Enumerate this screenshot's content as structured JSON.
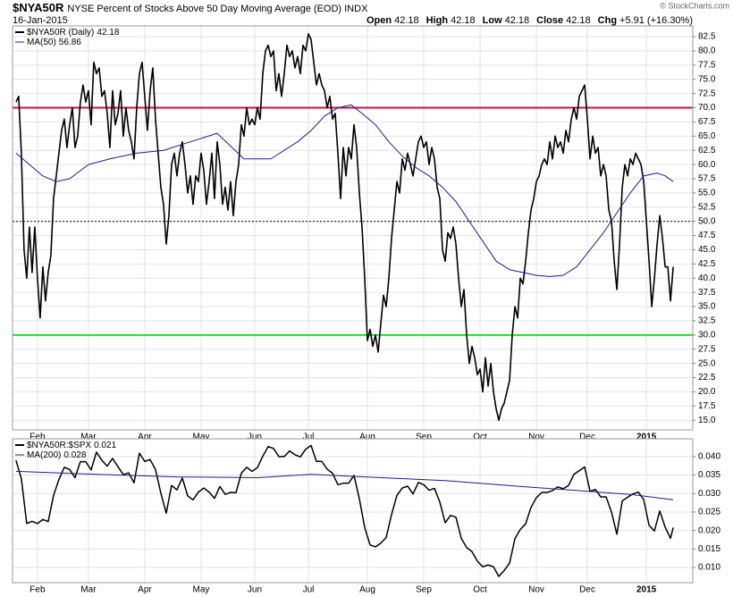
{
  "credit": "© StockCharts.com",
  "chart_data": [
    {
      "type": "line",
      "title": "$NYA50R",
      "subtitle": "NYSE Percent of Stocks Above 50 Day Moving Average (EOD) INDX",
      "date": "16-Jan-2015",
      "quote": [
        {
          "label": "Open",
          "value": "42.18"
        },
        {
          "label": "High",
          "value": "42.18"
        },
        {
          "label": "Low",
          "value": "42.18"
        },
        {
          "label": "Close",
          "value": "42.18"
        },
        {
          "label": "Chg",
          "value": "+5.91 (+16.30%)"
        }
      ],
      "xlim": [
        -1.3,
        252.3
      ],
      "xticks": [
        {
          "value": 8,
          "label": "Feb"
        },
        {
          "value": 27,
          "label": "Mar"
        },
        {
          "value": 48,
          "label": "Apr"
        },
        {
          "value": 69,
          "label": "May"
        },
        {
          "value": 89,
          "label": "Jun"
        },
        {
          "value": 109,
          "label": "Jul"
        },
        {
          "value": 131,
          "label": "Aug"
        },
        {
          "value": 152,
          "label": "Sep"
        },
        {
          "value": 173,
          "label": "Oct"
        },
        {
          "value": 194,
          "label": "Nov"
        },
        {
          "value": 213,
          "label": "Dec"
        },
        {
          "value": 235,
          "label": "2015"
        }
      ],
      "ylim": [
        13.3,
        84.4
      ],
      "yticks": [
        {
          "value": 15,
          "label": "15.0"
        },
        17.5,
        {
          "value": 20,
          "label": "20.0"
        },
        22.5,
        {
          "value": 25,
          "label": "25.0"
        },
        27.5,
        {
          "value": 30,
          "label": "30.0"
        },
        32.5,
        {
          "value": 35,
          "label": "35.0"
        },
        37.5,
        {
          "value": 40,
          "label": "40.0"
        },
        42.5,
        {
          "value": 45,
          "label": "45.0"
        },
        47.5,
        {
          "value": 50,
          "label": "50.0"
        },
        52.5,
        {
          "value": 55,
          "label": "55.0"
        },
        57.5,
        {
          "value": 60,
          "label": "60.0"
        },
        62.5,
        {
          "value": 65,
          "label": "65.0"
        },
        67.5,
        {
          "value": 70,
          "label": "70.0"
        },
        72.5,
        {
          "value": 75,
          "label": "75.0"
        },
        77.5,
        {
          "value": 80,
          "label": "80.0"
        },
        82.5
      ],
      "grid": true,
      "hlines": [
        {
          "value": 70,
          "color": "#c8143c",
          "style": "solid"
        },
        {
          "value": 50,
          "color": "#000000",
          "style": "dotted"
        },
        {
          "value": 30,
          "color": "#22e022",
          "style": "solid"
        }
      ],
      "series": [
        {
          "name": "$NYA50R (Daily)",
          "legend_value": "42.18",
          "color": "#000000",
          "width": 1.6,
          "x": [
            0,
            1,
            2,
            3,
            4,
            5,
            6,
            7,
            8,
            9,
            10,
            11,
            12,
            13,
            14,
            15,
            16,
            17,
            18,
            19,
            20,
            21,
            22,
            23,
            24,
            25,
            26,
            27,
            28,
            29,
            30,
            31,
            32,
            33,
            34,
            35,
            36,
            37,
            38,
            39,
            40,
            41,
            42,
            43,
            44,
            45,
            46,
            47,
            48,
            49,
            50,
            51,
            52,
            53,
            54,
            55,
            56,
            57,
            58,
            59,
            60,
            61,
            62,
            63,
            64,
            65,
            66,
            67,
            68,
            69,
            70,
            71,
            72,
            73,
            74,
            75,
            76,
            77,
            78,
            79,
            80,
            81,
            82,
            83,
            84,
            85,
            86,
            87,
            88,
            89,
            90,
            91,
            92,
            93,
            94,
            95,
            96,
            97,
            98,
            99,
            100,
            101,
            102,
            103,
            104,
            105,
            106,
            107,
            108,
            109,
            110,
            111,
            112,
            113,
            114,
            115,
            116,
            117,
            118,
            119,
            120,
            121,
            122,
            123,
            124,
            125,
            126,
            127,
            128,
            129,
            130,
            131,
            132,
            133,
            134,
            135,
            136,
            137,
            138,
            139,
            140,
            141,
            142,
            143,
            144,
            145,
            146,
            147,
            148,
            149,
            150,
            151,
            152,
            153,
            154,
            155,
            156,
            157,
            158,
            159,
            160,
            161,
            162,
            163,
            164,
            165,
            166,
            167,
            168,
            169,
            170,
            171,
            172,
            173,
            174,
            175,
            176,
            177,
            178,
            179,
            180,
            181,
            182,
            183,
            184,
            185,
            186,
            187,
            188,
            189,
            190,
            191,
            192,
            193,
            194,
            195,
            196,
            197,
            198,
            199,
            200,
            201,
            202,
            203,
            204,
            205,
            206,
            207,
            208,
            209,
            210,
            211,
            212,
            213,
            214,
            215,
            216,
            217,
            218,
            219,
            220,
            221,
            222,
            223,
            224,
            225,
            226,
            227,
            228,
            229,
            230,
            231,
            232,
            233,
            234,
            235,
            236,
            237,
            238,
            239,
            240,
            241,
            242,
            243,
            244,
            245
          ],
          "values": [
            71,
            72,
            62,
            45,
            40,
            49,
            41,
            49,
            40,
            33,
            42,
            36,
            41,
            44,
            54,
            58,
            62,
            66,
            68,
            63,
            67,
            70,
            63,
            65,
            71,
            74,
            71,
            73,
            67,
            78,
            76,
            77,
            72,
            73,
            69,
            63,
            73,
            67,
            69,
            73,
            65,
            70,
            66,
            64,
            61,
            70,
            76,
            78,
            72,
            66,
            73,
            77,
            68,
            62,
            56,
            53,
            46,
            51,
            60,
            62,
            58,
            62,
            64,
            60,
            55,
            58,
            53,
            58,
            57,
            62,
            59,
            53,
            57,
            62,
            54,
            64,
            60,
            53,
            56,
            52,
            57,
            51,
            57,
            60,
            67,
            65,
            70,
            67,
            68,
            67,
            70,
            68,
            76,
            80,
            81,
            79,
            80,
            73,
            76,
            72,
            76,
            81,
            79,
            80,
            77,
            79,
            76,
            81,
            80,
            83,
            82,
            78,
            74,
            76,
            74,
            73,
            70,
            72,
            68,
            69,
            62,
            54,
            63,
            58,
            63,
            61,
            67,
            63,
            55,
            49,
            40,
            29,
            31,
            28,
            30,
            27,
            32,
            37,
            35,
            40,
            47,
            52,
            57,
            55,
            61,
            59,
            62,
            60,
            58,
            61,
            64,
            65,
            63,
            64,
            60,
            63,
            61,
            56,
            54,
            45,
            43,
            48,
            47,
            49,
            46,
            40,
            35,
            38,
            30,
            25,
            28,
            26,
            23,
            24,
            20,
            26,
            21,
            25,
            20,
            17,
            15,
            17,
            18,
            20,
            22,
            30,
            35,
            33,
            40,
            39,
            43,
            48,
            52,
            54,
            57,
            58,
            60,
            61,
            60,
            64,
            61,
            65,
            63,
            64,
            62,
            66,
            64,
            68,
            70,
            68,
            72,
            73,
            74,
            68,
            61,
            65,
            62,
            63,
            58,
            60,
            58,
            52,
            50,
            43,
            38,
            46,
            56,
            60,
            58,
            61,
            60,
            62,
            61,
            60,
            57,
            50,
            43,
            35,
            40,
            46,
            51,
            47,
            42,
            42,
            36,
            42
          ]
        },
        {
          "name": "MA(50)",
          "legend_value": "56.86",
          "color": "#1c1c8c",
          "width": 1,
          "x": [
            0,
            5,
            10,
            15,
            20,
            27,
            35,
            45,
            55,
            65,
            75,
            85,
            95,
            105,
            110,
            115,
            120,
            125,
            129,
            134,
            139,
            144,
            149,
            154,
            159,
            164,
            169,
            174,
            179,
            184,
            189,
            194,
            199,
            204,
            209,
            214,
            219,
            224,
            229,
            234,
            239,
            242,
            245
          ],
          "values": [
            62,
            60,
            58,
            57,
            57.5,
            60,
            61,
            62,
            62.5,
            64,
            65.5,
            61,
            61,
            64,
            66,
            68.5,
            70,
            70.5,
            69,
            67,
            64,
            61.5,
            59.5,
            58,
            56,
            53.5,
            50,
            46.5,
            43,
            41.5,
            41,
            40.5,
            40.3,
            40.5,
            42,
            45,
            48,
            51.5,
            55,
            58,
            58.5,
            58,
            57
          ]
        }
      ]
    },
    {
      "type": "line",
      "xlim": [
        -1.3,
        252.3
      ],
      "xticks": [
        {
          "value": 8,
          "label": "Feb"
        },
        {
          "value": 27,
          "label": "Mar"
        },
        {
          "value": 48,
          "label": "Apr"
        },
        {
          "value": 69,
          "label": "May"
        },
        {
          "value": 89,
          "label": "Jun"
        },
        {
          "value": 109,
          "label": "Jul"
        },
        {
          "value": 131,
          "label": "Aug"
        },
        {
          "value": 152,
          "label": "Sep"
        },
        {
          "value": 173,
          "label": "Oct"
        },
        {
          "value": 194,
          "label": "Nov"
        },
        {
          "value": 213,
          "label": "Dec"
        },
        {
          "value": 235,
          "label": "2015"
        }
      ],
      "ylim": [
        0.0059,
        0.0448
      ],
      "yticks": [
        {
          "value": 0.01,
          "label": "0.010"
        },
        0.015,
        {
          "value": 0.02,
          "label": "0.020"
        },
        0.025,
        {
          "value": 0.03,
          "label": "0.030"
        },
        0.035,
        {
          "value": 0.04,
          "label": "0.040"
        }
      ],
      "grid": true,
      "series": [
        {
          "name": "$NYA50R:$SPX",
          "legend_value": "0.021",
          "color": "#000000",
          "width": 1.5,
          "x": [
            0,
            2,
            4,
            6,
            8,
            10,
            12,
            14,
            16,
            18,
            20,
            22,
            24,
            26,
            28,
            30,
            32,
            34,
            36,
            38,
            40,
            42,
            44,
            46,
            48,
            50,
            52,
            54,
            56,
            58,
            60,
            62,
            64,
            66,
            68,
            70,
            72,
            74,
            76,
            78,
            80,
            82,
            84,
            86,
            88,
            90,
            92,
            94,
            96,
            98,
            100,
            102,
            104,
            106,
            108,
            110,
            112,
            114,
            116,
            118,
            120,
            122,
            124,
            126,
            128,
            130,
            132,
            134,
            136,
            138,
            140,
            142,
            144,
            146,
            148,
            150,
            152,
            154,
            156,
            158,
            160,
            162,
            164,
            166,
            168,
            170,
            172,
            174,
            176,
            178,
            180,
            182,
            184,
            186,
            188,
            190,
            192,
            194,
            196,
            198,
            200,
            202,
            204,
            206,
            208,
            210,
            212,
            214,
            216,
            218,
            220,
            222,
            224,
            226,
            228,
            230,
            232,
            234,
            236,
            238,
            240,
            242,
            244,
            245
          ],
          "values": [
            0.039,
            0.034,
            0.0219,
            0.0225,
            0.0219,
            0.023,
            0.0224,
            0.0295,
            0.0338,
            0.0371,
            0.0365,
            0.0343,
            0.0386,
            0.0386,
            0.0364,
            0.0412,
            0.039,
            0.0374,
            0.0395,
            0.0373,
            0.0351,
            0.0356,
            0.0329,
            0.0409,
            0.0387,
            0.0392,
            0.0365,
            0.0301,
            0.0247,
            0.0322,
            0.031,
            0.0342,
            0.0294,
            0.0283,
            0.0304,
            0.0315,
            0.0304,
            0.0287,
            0.0319,
            0.0298,
            0.0303,
            0.0302,
            0.0355,
            0.0371,
            0.036,
            0.037,
            0.0401,
            0.0427,
            0.0422,
            0.04,
            0.04,
            0.0415,
            0.0405,
            0.0399,
            0.042,
            0.043,
            0.0387,
            0.0387,
            0.0366,
            0.0355,
            0.0324,
            0.0328,
            0.0328,
            0.0349,
            0.0286,
            0.0208,
            0.0161,
            0.0156,
            0.0166,
            0.0181,
            0.0243,
            0.0295,
            0.0315,
            0.032,
            0.0299,
            0.033,
            0.0324,
            0.0309,
            0.0314,
            0.0277,
            0.0221,
            0.0241,
            0.0236,
            0.0179,
            0.0154,
            0.0143,
            0.0117,
            0.0102,
            0.0107,
            0.0102,
            0.0076,
            0.0092,
            0.0112,
            0.0178,
            0.0203,
            0.0218,
            0.0263,
            0.0289,
            0.0303,
            0.0303,
            0.0308,
            0.0318,
            0.0313,
            0.0322,
            0.0352,
            0.0362,
            0.0372,
            0.0306,
            0.0311,
            0.0291,
            0.0291,
            0.025,
            0.019,
            0.028,
            0.029,
            0.0299,
            0.0304,
            0.0284,
            0.0214,
            0.0199,
            0.0253,
            0.0209,
            0.0179,
            0.0208
          ]
        },
        {
          "name": "MA(200)",
          "legend_value": "0.028",
          "color": "#1c1c8c",
          "width": 1,
          "x": [
            0,
            30,
            60,
            90,
            110,
            130,
            160,
            190,
            210,
            230,
            245
          ],
          "values": [
            0.036,
            0.0352,
            0.0345,
            0.0343,
            0.0352,
            0.0345,
            0.0335,
            0.0318,
            0.0308,
            0.0297,
            0.0283
          ]
        }
      ]
    }
  ]
}
